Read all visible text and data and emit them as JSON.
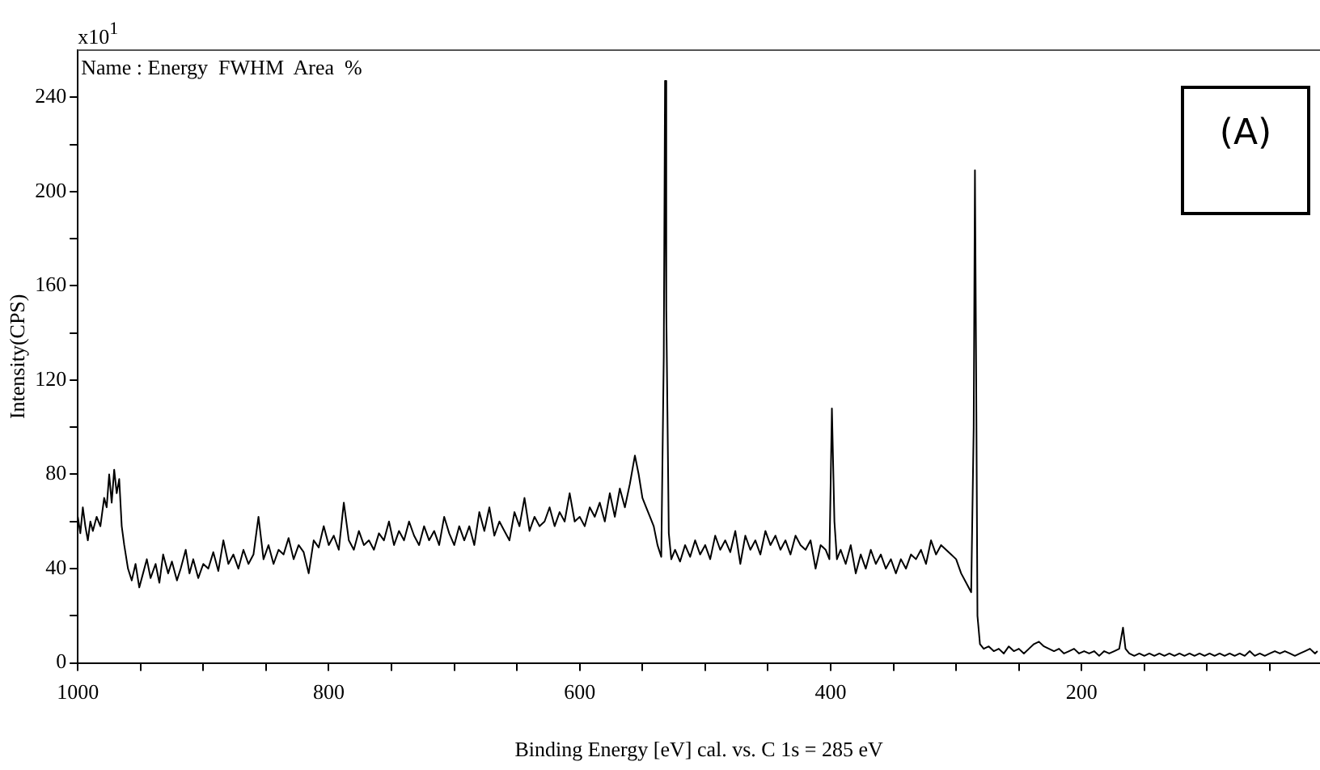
{
  "chart_data": {
    "type": "line",
    "xlabel": "Binding Energy [eV] cal. vs. C 1s = 285 eV",
    "ylabel": "Intensity(CPS)",
    "annotations": [
      "x10$^{1}$",
      "Name : Energy  FWHM  Area  %",
      "(A)"
    ],
    "xlim": [
      1000,
      10
    ],
    "xticks": [
      1000,
      {
        "value": 950,
        "label": null
      },
      {
        "value": 900,
        "label": null
      },
      {
        "value": 850,
        "label": null
      },
      800,
      {
        "value": 750,
        "label": null
      },
      {
        "value": 700,
        "label": null
      },
      {
        "value": 650,
        "label": null
      },
      600,
      {
        "value": 550,
        "label": null
      },
      {
        "value": 500,
        "label": null
      },
      {
        "value": 450,
        "label": null
      },
      400,
      {
        "value": 350,
        "label": null
      },
      {
        "value": 300,
        "label": null
      },
      {
        "value": 250,
        "label": null
      },
      200,
      {
        "value": 150,
        "label": null
      },
      {
        "value": 100,
        "label": null
      },
      {
        "value": 50,
        "label": null
      }
    ],
    "ylim": [
      0,
      260
    ],
    "yticks": [
      0,
      {
        "value": 20,
        "label": null
      },
      40,
      {
        "value": 60,
        "label": null
      },
      80,
      {
        "value": 100,
        "label": null
      },
      120,
      {
        "value": 140,
        "label": null
      },
      160,
      {
        "value": 180,
        "label": null
      },
      200,
      {
        "value": 220,
        "label": null
      },
      240
    ],
    "grid": false,
    "legend": false,
    "marker": "none",
    "line_style": "solid",
    "series": [
      {
        "color": "#000000",
        "x": [
          1000,
          998,
          996,
          994,
          992,
          990,
          988,
          985,
          982,
          979,
          977,
          975,
          973,
          971,
          969,
          967,
          965,
          963,
          960,
          957,
          954,
          951,
          948,
          945,
          942,
          938,
          935,
          932,
          928,
          925,
          921,
          918,
          914,
          911,
          908,
          904,
          900,
          896,
          892,
          888,
          884,
          880,
          876,
          872,
          868,
          864,
          860,
          856,
          852,
          848,
          844,
          840,
          836,
          832,
          828,
          824,
          820,
          816,
          812,
          808,
          804,
          800,
          796,
          792,
          788,
          784,
          780,
          776,
          772,
          768,
          764,
          760,
          756,
          752,
          748,
          744,
          740,
          736,
          732,
          728,
          724,
          720,
          716,
          712,
          708,
          704,
          700,
          696,
          692,
          688,
          684,
          680,
          676,
          672,
          668,
          664,
          660,
          656,
          652,
          648,
          644,
          640,
          636,
          632,
          628,
          624,
          620,
          616,
          612,
          608,
          604,
          600,
          596,
          592,
          588,
          584,
          580,
          576,
          572,
          568,
          564,
          560,
          556,
          553,
          550,
          547,
          544,
          541,
          538,
          535,
          533,
          532,
          531,
          529,
          527,
          524,
          520,
          516,
          512,
          508,
          504,
          500,
          496,
          492,
          488,
          484,
          480,
          476,
          472,
          468,
          464,
          460,
          456,
          452,
          448,
          444,
          440,
          436,
          432,
          428,
          424,
          420,
          416,
          412,
          408,
          404,
          401,
          399,
          397,
          395,
          392,
          388,
          384,
          380,
          376,
          372,
          368,
          364,
          360,
          356,
          352,
          348,
          344,
          340,
          336,
          332,
          328,
          324,
          320,
          316,
          312,
          308,
          304,
          300,
          296,
          292,
          288,
          286,
          285,
          284,
          283,
          281,
          278,
          274,
          270,
          266,
          262,
          258,
          254,
          250,
          246,
          242,
          238,
          234,
          230,
          226,
          222,
          218,
          214,
          210,
          206,
          202,
          198,
          194,
          190,
          186,
          182,
          178,
          174,
          170,
          167,
          165,
          162,
          158,
          154,
          150,
          146,
          142,
          138,
          134,
          130,
          126,
          122,
          118,
          114,
          110,
          106,
          102,
          98,
          94,
          90,
          86,
          82,
          78,
          74,
          70,
          66,
          62,
          58,
          54,
          50,
          46,
          42,
          38,
          34,
          30,
          26,
          22,
          18,
          14,
          12
        ],
        "values": [
          62,
          55,
          66,
          58,
          52,
          60,
          56,
          62,
          58,
          70,
          66,
          80,
          68,
          82,
          72,
          78,
          58,
          50,
          40,
          35,
          42,
          32,
          38,
          44,
          36,
          42,
          34,
          46,
          38,
          43,
          35,
          40,
          48,
          38,
          44,
          36,
          42,
          40,
          47,
          39,
          52,
          42,
          46,
          40,
          48,
          42,
          46,
          62,
          44,
          50,
          42,
          48,
          46,
          53,
          44,
          50,
          47,
          38,
          52,
          49,
          58,
          50,
          54,
          48,
          68,
          52,
          48,
          56,
          50,
          52,
          48,
          55,
          52,
          60,
          50,
          56,
          52,
          60,
          54,
          50,
          58,
          52,
          56,
          50,
          62,
          55,
          50,
          58,
          52,
          58,
          50,
          64,
          56,
          66,
          54,
          60,
          56,
          52,
          64,
          58,
          70,
          56,
          62,
          58,
          60,
          66,
          58,
          64,
          60,
          72,
          60,
          62,
          58,
          66,
          62,
          68,
          60,
          72,
          62,
          74,
          66,
          76,
          88,
          80,
          70,
          66,
          62,
          58,
          50,
          45,
          130,
          247,
          150,
          55,
          44,
          48,
          43,
          50,
          45,
          52,
          46,
          50,
          44,
          54,
          48,
          52,
          47,
          56,
          42,
          54,
          48,
          52,
          46,
          56,
          50,
          54,
          48,
          52,
          46,
          54,
          50,
          48,
          52,
          40,
          50,
          48,
          44,
          108,
          60,
          44,
          48,
          42,
          50,
          38,
          46,
          40,
          48,
          42,
          46,
          40,
          44,
          38,
          44,
          40,
          46,
          44,
          48,
          42,
          52,
          46,
          50,
          48,
          46,
          44,
          38,
          34,
          30,
          100,
          209,
          120,
          20,
          8,
          6,
          7,
          5,
          6,
          4,
          7,
          5,
          6,
          4,
          6,
          8,
          9,
          7,
          6,
          5,
          6,
          4,
          5,
          6,
          4,
          5,
          4,
          5,
          3,
          5,
          4,
          5,
          6,
          15,
          6,
          4,
          3,
          4,
          3,
          4,
          3,
          4,
          3,
          4,
          3,
          4,
          3,
          4,
          3,
          4,
          3,
          4,
          3,
          4,
          3,
          4,
          3,
          4,
          3,
          5,
          3,
          4,
          3,
          4,
          5,
          4,
          5,
          4,
          3,
          4,
          5,
          6,
          4,
          5
        ]
      }
    ]
  }
}
